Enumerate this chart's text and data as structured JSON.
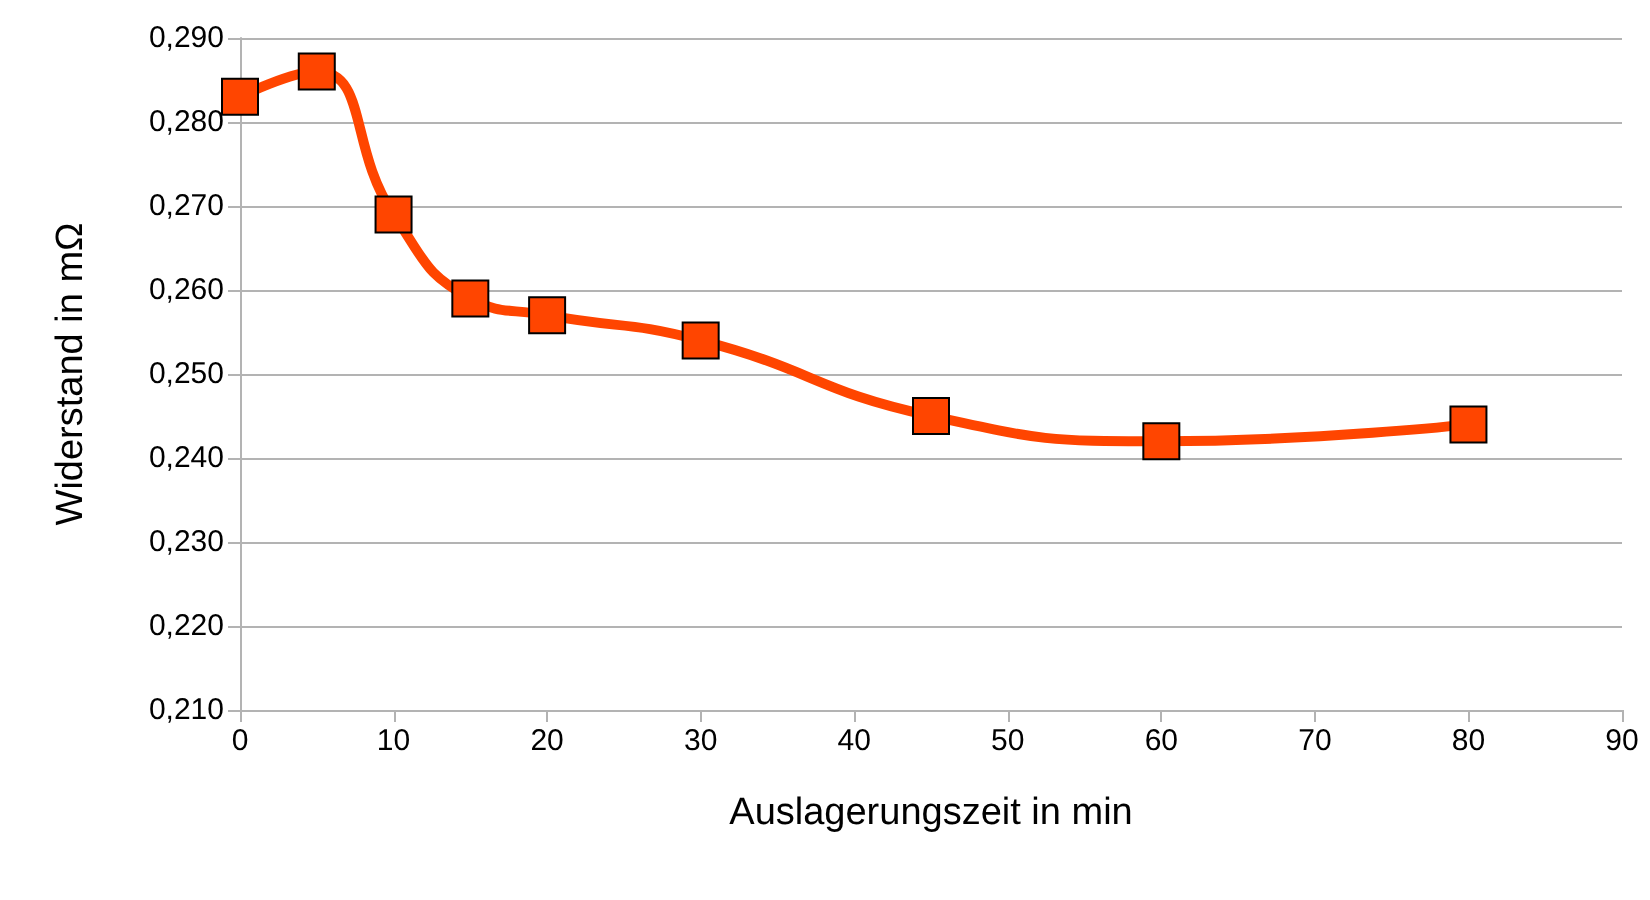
{
  "chart_data": {
    "type": "line",
    "xlabel": "Auslagerungszeit in min",
    "ylabel": "Widerstand in mΩ",
    "x": [
      0,
      5,
      10,
      15,
      20,
      30,
      45,
      60,
      80
    ],
    "series": [
      {
        "color": "#ff4500",
        "values": [
          0.283,
          0.286,
          0.269,
          0.259,
          0.257,
          0.254,
          0.245,
          0.242,
          0.244
        ]
      }
    ],
    "xlim": [
      0,
      90
    ],
    "xticks": [
      0,
      10,
      20,
      30,
      40,
      50,
      60,
      70,
      80,
      90
    ],
    "ylim": [
      0.21,
      0.29
    ],
    "yticks": [
      {
        "value": 0.21,
        "label": "0,210"
      },
      {
        "value": 0.22,
        "label": "0,220"
      },
      {
        "value": 0.23,
        "label": "0,230"
      },
      {
        "value": 0.24,
        "label": "0,240"
      },
      {
        "value": 0.25,
        "label": "0,250"
      },
      {
        "value": 0.26,
        "label": "0,260"
      },
      {
        "value": 0.27,
        "label": "0,270"
      },
      {
        "value": 0.28,
        "label": "0,280"
      },
      {
        "value": 0.29,
        "label": "0,290"
      }
    ],
    "grid": "y",
    "marker": "square",
    "line_style": "solid"
  }
}
